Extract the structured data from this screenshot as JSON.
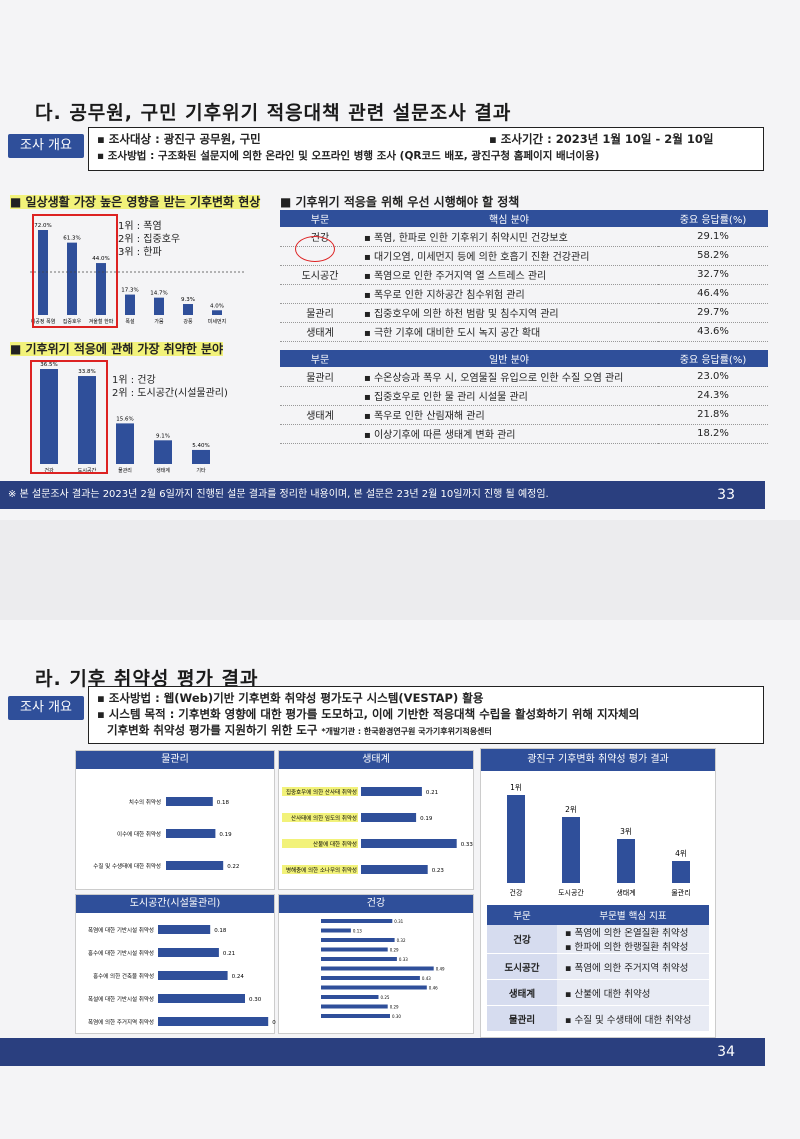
{
  "p1": {
    "title": "다. 공무원, 구민 기후위기 적응대책 관련 설문조사 결과",
    "tag": "조사 개요",
    "overview": {
      "target": "▪ 조사대상 : 광진구 공무원, 구민",
      "period": "▪ 조사기간 : 2023년 1월 10일 - 2월 10일",
      "method": "▪ 조사방법 : 구조화된 설문지에 의한 온라인 및 오프라인 병행 조사 (QR코드 배포, 광진구청 홈페이지 배너이용)"
    },
    "chart1": {
      "title": "■ 일상생활 가장 높은 영향을 받는 기후변화 현상",
      "ranks": [
        "1위 : 폭염",
        "2위 : 집중호우",
        "3위 : 한파"
      ]
    },
    "chart2": {
      "title": "■ 기후위기 적응에 관해 가장 취약한 분야",
      "ranks": [
        "1위 : 건강",
        "2위 : 도시공간(시설물관리)"
      ]
    },
    "policy": {
      "title": "■ 기후위기 적응을 위해 우선 시행해야 할 정책",
      "h1": [
        "부문",
        "핵심 분야",
        "중요 응답률(%)"
      ],
      "core": [
        [
          "건강",
          "▪ 폭염, 한파로 인한 기후위기 취약시민 건강보호",
          "29.1%"
        ],
        [
          "",
          "▪ 대기오염, 미세먼지 등에 의한 호흡기 진환 건강관리",
          "58.2%"
        ],
        [
          "도시공간",
          "▪ 폭염으로 인한 주거지역 열 스트레스 관리",
          "32.7%"
        ],
        [
          "",
          "▪ 폭우로 인한 지하공간 침수위험 관리",
          "46.4%"
        ],
        [
          "물관리",
          "▪ 집중호우에 의한 하천 범람 및 침수지역 관리",
          "29.7%"
        ],
        [
          "생태계",
          "▪ 극한 기후에 대비한 도시 녹지 공간 확대",
          "43.6%"
        ]
      ],
      "h2": [
        "부문",
        "일반 분야",
        "중요 응답률(%)"
      ],
      "general": [
        [
          "물관리",
          "▪ 수온상승과 폭우 시, 오염물질 유입으로 인한 수질 오염 관리",
          "23.0%"
        ],
        [
          "",
          "▪ 집중호우로 인한 물 관리 시설물 관리",
          "24.3%"
        ],
        [
          "생태계",
          "▪ 폭우로 인한 산림재해 관리",
          "21.8%"
        ],
        [
          "",
          "▪ 이상기후에 따른 생태계 변화 관리",
          "18.2%"
        ]
      ]
    },
    "footer": "※ 본 설문조사 결과는 2023년 2월 6일까지 진행된 설문 결과를 정리한 내용이며, 본 설문은 23년 2월 10일까지 진행 될 예정임.",
    "page": "33"
  },
  "chart_data": [
    {
      "type": "bar",
      "categories": [
        "이공정 폭염",
        "집중호우",
        "겨울철 한파",
        "폭설",
        "가뭄",
        "강풍",
        "미세먼지"
      ],
      "values": [
        72.0,
        61.3,
        44.0,
        17.3,
        14.7,
        9.3,
        4.0
      ],
      "labels": [
        "72.0%",
        "61.3%",
        "44.0%",
        "17.3%",
        "14.7%",
        "9.3%",
        "4.0%"
      ]
    },
    {
      "type": "bar",
      "categories": [
        "건강",
        "도시공간",
        "물관리",
        "생태계",
        "기타"
      ],
      "values": [
        36.5,
        33.8,
        15.6,
        9.1,
        5.4
      ],
      "labels": [
        "36.5%",
        "33.8%",
        "15.6%",
        "9.1%",
        "5.40%"
      ]
    },
    {
      "type": "bar",
      "title": "물관리",
      "categories": [
        "치수의 취약성",
        "이수에 대한 취약성",
        "수질 및 수생태에 대한 취약성"
      ],
      "values": [
        0.18,
        0.19,
        0.22
      ]
    },
    {
      "type": "bar",
      "title": "생태계",
      "categories": [
        "집중호우에 의한 산사태 취약성",
        "산사태에 의한 임도의 취약성",
        "산불에 대한 취약성",
        "병해충에 의한 소나무의 취약성"
      ],
      "values": [
        0.21,
        0.19,
        0.33,
        0.23
      ]
    },
    {
      "type": "bar",
      "title": "도시공간(시설물관리)",
      "categories": [
        "폭염에 대한 기반시설 취약성",
        "홍수에 대한 기반시설 취약성",
        "홍수에 의한 건축물 취약성",
        "폭설에 대한 기반시설 취약성",
        "폭염에 의한 주거지역 취약성"
      ],
      "values": [
        0.18,
        0.21,
        0.24,
        0.3,
        0.38
      ]
    },
    {
      "type": "bar",
      "title": "건강",
      "values": [
        0.31,
        0.13,
        0.32,
        0.29,
        0.33,
        0.49,
        0.43,
        0.46,
        0.25,
        0.29,
        0.3
      ]
    },
    {
      "type": "bar",
      "title": "광진구 기후변화 취약성 평가 결과",
      "categories": [
        "건강",
        "도시공간",
        "생태계",
        "물관리"
      ],
      "values": [
        4,
        3,
        2,
        1
      ],
      "labels": [
        "1위",
        "2위",
        "3위",
        "4위"
      ]
    }
  ],
  "p2": {
    "title": "라. 기후 취약성 평가 결과",
    "tag": "조사 개요",
    "method": "▪ 조사방법 : 웹(Web)기반 기후변화 취약성 평가도구 시스템(VESTAP) 활용",
    "purpose": "▪ 시스템 목적 : 기후변화 영향에 대한 평가를 도모하고, 이에 기반한 적응대책 수립을 활성화하기 위해 지자체의",
    "purpose2": "기후변화 취약성 평가를 지원하기 위한 도구",
    "dev": "*개발기관 : 한국환경연구원 국가기후위기적응센터",
    "panels": {
      "water": "물관리",
      "eco": "생태계",
      "city": "도시공간(시설물관리)",
      "health": "건강",
      "result": "광진구 기후변화 취약성 평가 결과"
    },
    "idx": {
      "h": [
        "부문",
        "부문별 핵심 지표"
      ],
      "rows": [
        [
          "건강",
          "▪ 폭염에 의한 온열질환 취약성",
          "▪ 한파에 의한 한랭질환 취약성"
        ],
        [
          "도시공간",
          "▪ 폭염에 의한 주거지역 취약성",
          ""
        ],
        [
          "생태계",
          "▪ 산불에 대한 취약성",
          ""
        ],
        [
          "물관리",
          "▪ 수질 및 수생태에 대한 취약성",
          ""
        ]
      ]
    },
    "page": "34"
  },
  "colors": {
    "bar": "#2f4f9a",
    "red": "#d22",
    "highlight": "#f2f27a"
  }
}
